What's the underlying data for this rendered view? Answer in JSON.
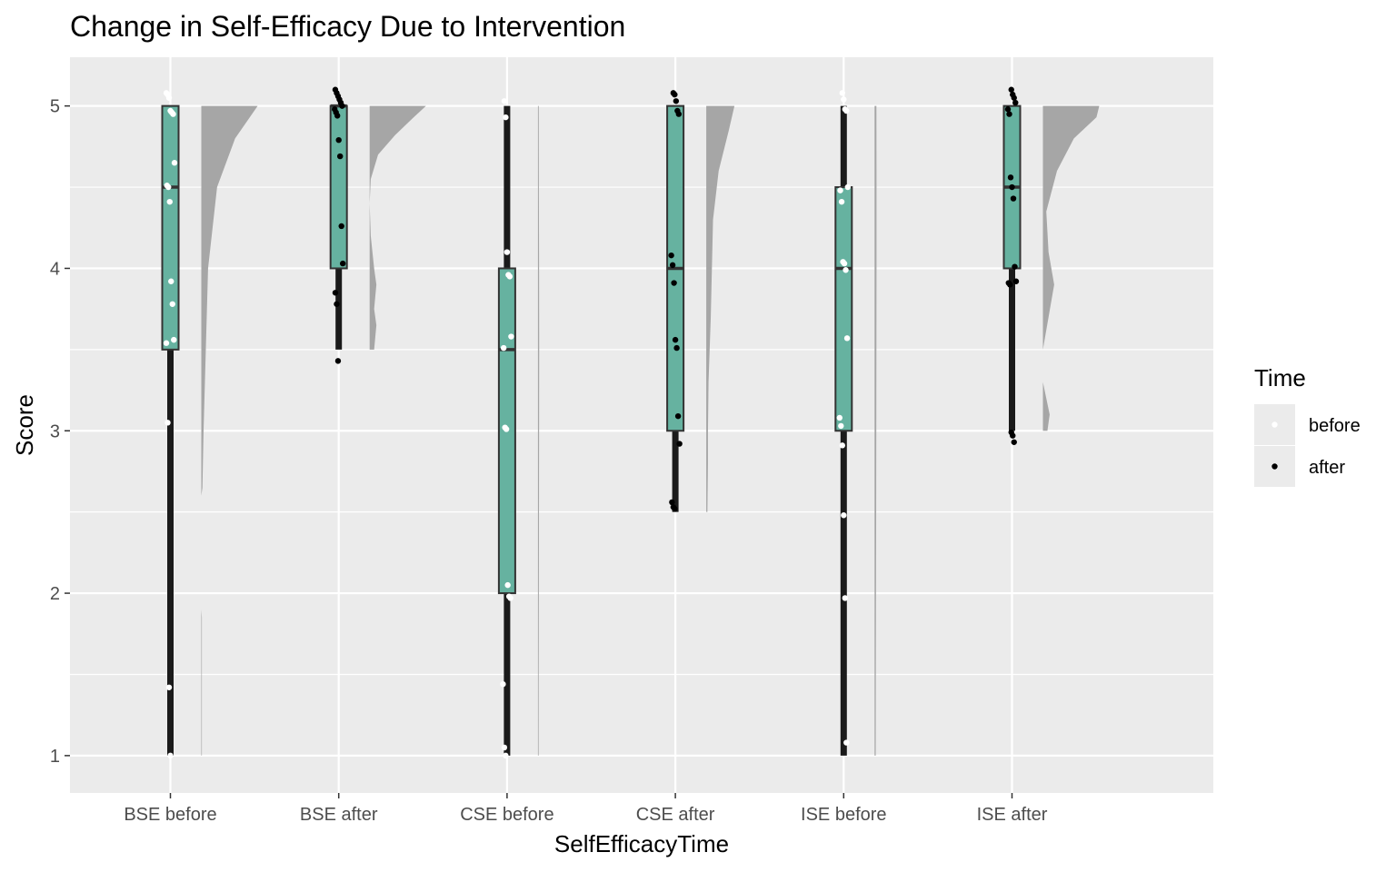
{
  "chart_data": {
    "type": "raincloud",
    "title": "Change in Self-Efficacy Due to Intervention",
    "xlabel": "SelfEfficacyTime",
    "ylabel": "Score",
    "ylim": [
      0.77,
      5.3
    ],
    "yticks": [
      1,
      2,
      3,
      4,
      5
    ],
    "grid": true,
    "colors": {
      "panel": "#EBEBEB",
      "grid": "#FFFFFF",
      "box_fill": "#66B2A0",
      "box_line": "#333333",
      "density": "#A6A6A6",
      "point_before": "#FFFFFF",
      "point_after": "#000000"
    },
    "legend": {
      "title": "Time",
      "position": "right",
      "entries": [
        {
          "label": "before",
          "color": "#FFFFFF"
        },
        {
          "label": "after",
          "color": "#000000"
        }
      ]
    },
    "categories": [
      "BSE before",
      "BSE after",
      "CSE before",
      "CSE after",
      "ISE before",
      "ISE after"
    ],
    "groups": [
      {
        "category": "BSE before",
        "time": "before",
        "box": {
          "min": 1,
          "q1": 3.5,
          "median": 4.5,
          "q3": 5,
          "max": 5
        },
        "points": [
          5.08,
          5.07,
          5.05,
          4.97,
          4.96,
          4.95,
          4.65,
          4.51,
          4.5,
          4.41,
          3.92,
          3.78,
          3.56,
          3.54,
          3.05,
          1.42,
          1.0
        ],
        "density": [
          [
            1.0,
            0.01
          ],
          [
            1.85,
            0.01
          ],
          [
            1.9,
            0.0
          ],
          [
            2.6,
            0.0
          ],
          [
            2.65,
            0.02
          ],
          [
            3.0,
            0.04
          ],
          [
            3.5,
            0.08
          ],
          [
            4.0,
            0.12
          ],
          [
            4.5,
            0.28
          ],
          [
            4.8,
            0.6
          ],
          [
            5.0,
            1.0
          ]
        ]
      },
      {
        "category": "BSE after",
        "time": "after",
        "box": {
          "min": 3.5,
          "q1": 4,
          "median": 5,
          "q3": 5,
          "max": 5
        },
        "points": [
          5.1,
          5.08,
          5.06,
          5.04,
          5.02,
          5.0,
          4.98,
          4.96,
          4.94,
          4.79,
          4.69,
          4.26,
          4.03,
          3.85,
          3.78,
          3.43
        ],
        "density": [
          [
            3.5,
            0.08
          ],
          [
            3.65,
            0.12
          ],
          [
            3.75,
            0.08
          ],
          [
            3.9,
            0.12
          ],
          [
            4.0,
            0.08
          ],
          [
            4.2,
            0.02
          ],
          [
            4.4,
            0.0
          ],
          [
            4.55,
            0.02
          ],
          [
            4.7,
            0.15
          ],
          [
            4.82,
            0.45
          ],
          [
            4.92,
            0.75
          ],
          [
            5.0,
            1.0
          ]
        ]
      },
      {
        "category": "CSE before",
        "time": "before",
        "box": {
          "min": 1,
          "q1": 2,
          "median": 3.5,
          "q3": 4,
          "max": 5
        },
        "points": [
          5.03,
          4.93,
          4.1,
          3.96,
          3.95,
          3.58,
          3.51,
          3.02,
          3.01,
          2.05,
          1.98,
          1.97,
          1.44,
          1.05,
          1.0
        ],
        "density": [
          [
            1.0,
            0.012
          ],
          [
            1.5,
            0.013
          ],
          [
            2.0,
            0.016
          ],
          [
            2.5,
            0.018
          ],
          [
            3.0,
            0.02
          ],
          [
            3.5,
            0.022
          ],
          [
            4.0,
            0.02
          ],
          [
            4.5,
            0.016
          ],
          [
            5.0,
            0.014
          ]
        ]
      },
      {
        "category": "CSE after",
        "time": "after",
        "box": {
          "min": 2.5,
          "q1": 3,
          "median": 4,
          "q3": 5,
          "max": 5
        },
        "points": [
          5.08,
          5.07,
          5.03,
          4.97,
          4.95,
          4.08,
          4.02,
          3.91,
          3.56,
          3.51,
          3.09,
          2.92,
          2.56,
          2.53,
          2.52
        ],
        "density": [
          [
            2.5,
            0.02
          ],
          [
            2.8,
            0.03
          ],
          [
            3.0,
            0.03
          ],
          [
            3.3,
            0.04
          ],
          [
            3.7,
            0.08
          ],
          [
            4.0,
            0.1
          ],
          [
            4.3,
            0.12
          ],
          [
            4.6,
            0.22
          ],
          [
            4.85,
            0.4
          ],
          [
            5.0,
            0.5
          ]
        ]
      },
      {
        "category": "ISE before",
        "time": "before",
        "box": {
          "min": 1,
          "q1": 3,
          "median": 4,
          "q3": 4.5,
          "max": 5
        },
        "points": [
          5.08,
          5.04,
          4.98,
          4.97,
          4.5,
          4.48,
          4.41,
          4.04,
          4.03,
          3.99,
          3.57,
          3.08,
          3.03,
          2.91,
          2.48,
          1.97,
          1.08
        ],
        "density": [
          [
            1.0,
            0.02
          ],
          [
            1.5,
            0.022
          ],
          [
            2.0,
            0.025
          ],
          [
            2.5,
            0.028
          ],
          [
            3.0,
            0.03
          ],
          [
            3.5,
            0.032
          ],
          [
            4.0,
            0.034
          ],
          [
            4.5,
            0.034
          ],
          [
            5.0,
            0.032
          ]
        ]
      },
      {
        "category": "ISE after",
        "time": "after",
        "box": {
          "min": 3,
          "q1": 4,
          "median": 4.5,
          "q3": 5,
          "max": 5
        },
        "points": [
          5.1,
          5.07,
          5.05,
          5.02,
          4.98,
          4.95,
          4.56,
          4.5,
          4.43,
          4.01,
          3.92,
          3.91,
          3.9,
          2.99,
          2.97,
          2.93
        ],
        "density": [
          [
            3.0,
            0.08
          ],
          [
            3.1,
            0.12
          ],
          [
            3.3,
            0.0
          ],
          [
            3.5,
            0.0
          ],
          [
            3.7,
            0.1
          ],
          [
            3.9,
            0.2
          ],
          [
            4.1,
            0.1
          ],
          [
            4.35,
            0.06
          ],
          [
            4.6,
            0.25
          ],
          [
            4.8,
            0.55
          ],
          [
            4.93,
            0.95
          ],
          [
            5.0,
            1.0
          ]
        ]
      }
    ]
  }
}
